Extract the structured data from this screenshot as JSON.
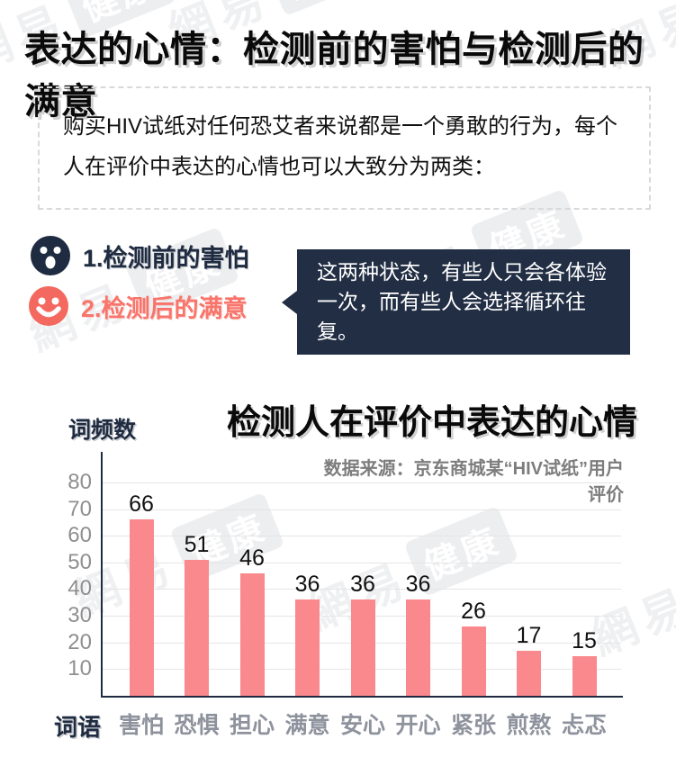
{
  "page": {
    "title": "表达的心情：检测前的害怕与检测后的满意"
  },
  "intro": {
    "text": "购买HIV试纸对任何恐艾者来说都是一个勇敢的行为，每个人在评价中表达的心情也可以大致分为两类："
  },
  "moods": {
    "items": [
      {
        "label": "1.检测前的害怕",
        "icon": "scared-face-icon",
        "color": "#1f2b40"
      },
      {
        "label": "2.检测后的满意",
        "icon": "smiley-face-icon",
        "color": "#f8756b"
      }
    ]
  },
  "bubble": {
    "text": "这两种状态，有些人只会各体验一次，而有些人会选择循环往复。"
  },
  "chart_data": {
    "type": "bar",
    "title": "检测人在评价中表达的心情",
    "source": "数据来源：京东商城某“HIV试纸”用户评价",
    "ylabel": "词频数",
    "xlabel": "词语",
    "categories": [
      "害怕",
      "恐惧",
      "担心",
      "满意",
      "安心",
      "开心",
      "紧张",
      "煎熬",
      "忐忑"
    ],
    "values": [
      66,
      51,
      46,
      36,
      36,
      36,
      26,
      17,
      15
    ],
    "yticks": [
      10,
      20,
      30,
      40,
      50,
      60,
      70,
      80
    ],
    "ylim": [
      0,
      82
    ],
    "grid": true,
    "legend": "none",
    "bar_color": "#f9898d",
    "axis_color": "#1f2b40",
    "gridline_color": "#e5e5e5",
    "tick_label_color": "#8f8f8f",
    "category_label_color": "#8d929c",
    "value_label_color": "#111111"
  },
  "watermark": {
    "text": "網易",
    "badge": "健康"
  }
}
